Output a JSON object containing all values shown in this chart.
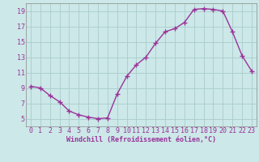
{
  "x": [
    0,
    1,
    2,
    3,
    4,
    5,
    6,
    7,
    8,
    9,
    10,
    11,
    12,
    13,
    14,
    15,
    16,
    17,
    18,
    19,
    20,
    21,
    22,
    23
  ],
  "y": [
    9.2,
    9.0,
    8.0,
    7.2,
    6.0,
    5.5,
    5.2,
    5.0,
    5.1,
    8.2,
    10.5,
    12.0,
    13.0,
    14.8,
    16.3,
    16.7,
    17.5,
    19.2,
    19.3,
    19.2,
    19.0,
    16.3,
    13.2,
    11.2
  ],
  "line_color": "#993399",
  "marker": "+",
  "bg_color": "#cce8e8",
  "grid_color": "#aacccc",
  "axis_color": "#666666",
  "xlabel": "Windchill (Refroidissement éolien,°C)",
  "ylim": [
    4,
    20
  ],
  "xlim": [
    -0.5,
    23.5
  ],
  "yticks": [
    5,
    7,
    9,
    11,
    13,
    15,
    17,
    19
  ],
  "xticks": [
    0,
    1,
    2,
    3,
    4,
    5,
    6,
    7,
    8,
    9,
    10,
    11,
    12,
    13,
    14,
    15,
    16,
    17,
    18,
    19,
    20,
    21,
    22,
    23
  ],
  "font_color": "#993399",
  "font_size": 6,
  "marker_size": 4,
  "linewidth": 1.0
}
